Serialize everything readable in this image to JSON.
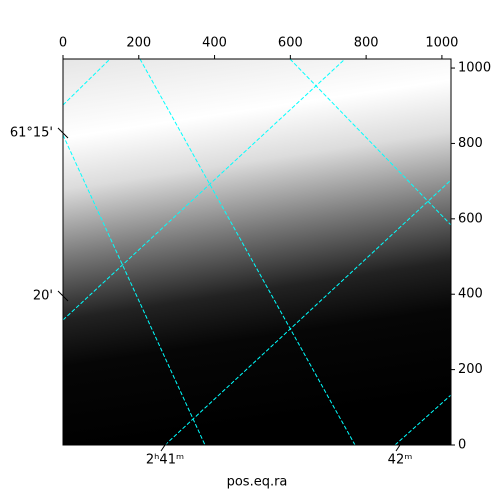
{
  "chart_data": {
    "type": "image",
    "xlabel": "pos.eq.ra",
    "xlim": [
      0,
      1024
    ],
    "ylim": [
      0,
      1024
    ],
    "xticks": [
      0,
      200,
      400,
      600,
      800,
      1000
    ],
    "yticks": [
      0,
      200,
      400,
      600,
      800,
      1000
    ],
    "ra_ticks": [
      "2ʰ41ᵐ",
      "42ᵐ"
    ],
    "dec_ticks": [
      "61°15'",
      "20'"
    ],
    "grid_color": "#00ffff"
  }
}
